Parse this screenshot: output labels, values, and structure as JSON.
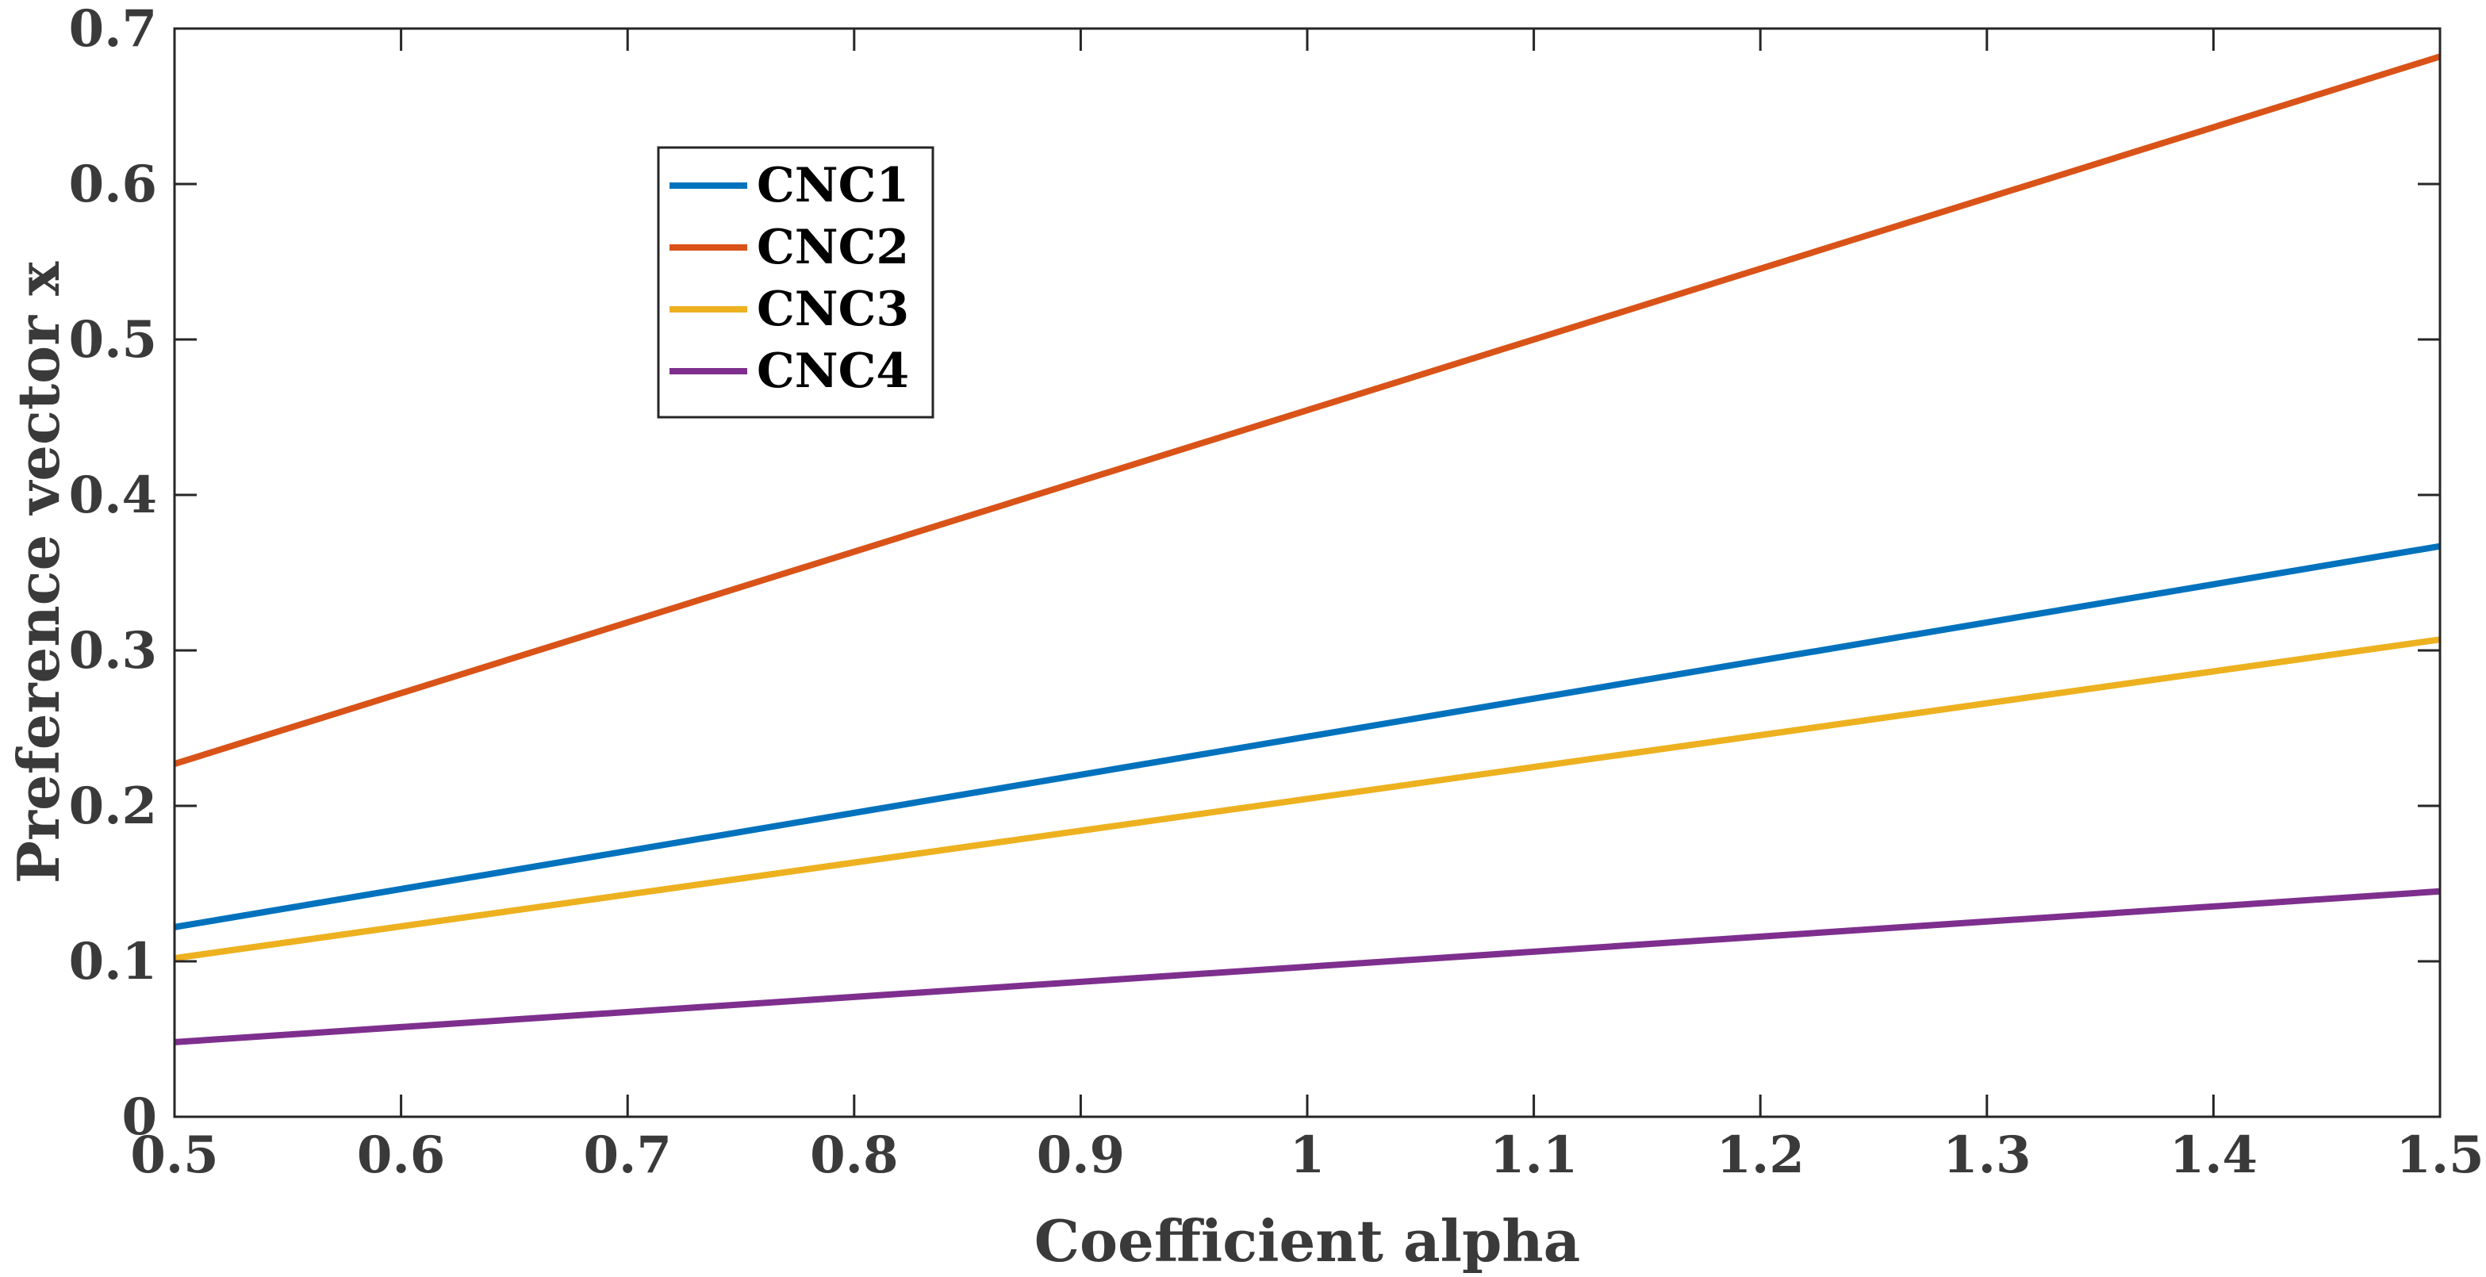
{
  "chart_data": {
    "type": "line",
    "title": "",
    "xlabel": "Coefficient alpha",
    "ylabel": "Preference vector x",
    "xlim": [
      0.5,
      1.5
    ],
    "ylim": [
      0,
      0.7
    ],
    "xticks": [
      "0.5",
      "0.6",
      "0.7",
      "0.8",
      "0.9",
      "1",
      "1.1",
      "1.2",
      "1.3",
      "1.4",
      "1.5"
    ],
    "yticks": [
      "0",
      "0.1",
      "0.2",
      "0.3",
      "0.4",
      "0.5",
      "0.6",
      "0.7"
    ],
    "grid": false,
    "legend_position": "top-left",
    "x": [
      0.5,
      1.5
    ],
    "series": [
      {
        "name": "CNC1",
        "color": "#0072BD",
        "values": [
          0.122,
          0.367
        ]
      },
      {
        "name": "CNC2",
        "color": "#D95319",
        "values": [
          0.227,
          0.682
        ]
      },
      {
        "name": "CNC3",
        "color": "#EDB120",
        "values": [
          0.102,
          0.307
        ]
      },
      {
        "name": "CNC4",
        "color": "#7E2F8E",
        "values": [
          0.048,
          0.145
        ]
      }
    ]
  }
}
